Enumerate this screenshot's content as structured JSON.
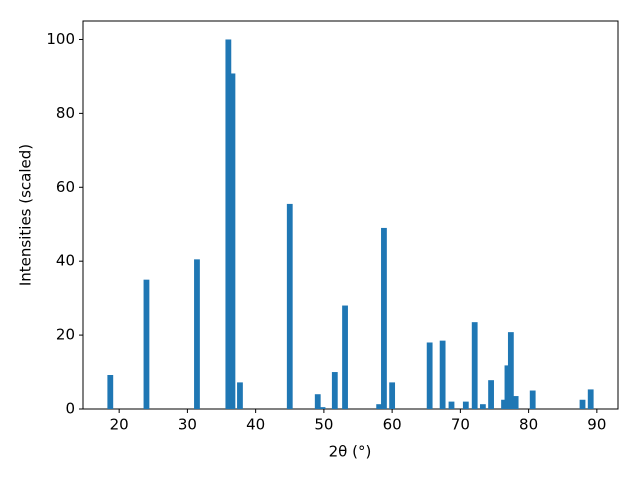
{
  "chart_data": {
    "type": "bar",
    "xlabel": "2θ (°)",
    "ylabel": "Intensities (scaled)",
    "x": [
      18.7,
      24.0,
      31.4,
      36.0,
      36.6,
      37.7,
      45.0,
      49.1,
      49.8,
      51.6,
      53.1,
      58.1,
      58.8,
      60.0,
      65.5,
      67.4,
      68.7,
      70.8,
      72.1,
      73.3,
      74.5,
      76.4,
      76.9,
      77.4,
      78.1,
      80.6,
      87.9,
      89.1
    ],
    "values": [
      9.2,
      35,
      40.5,
      100,
      90.8,
      7.2,
      55.5,
      4,
      0.5,
      10,
      28,
      1.3,
      49,
      7.2,
      18,
      18.5,
      2,
      2,
      23.5,
      1.3,
      7.8,
      2.5,
      11.8,
      20.8,
      3.5,
      5,
      2.5,
      5.3
    ],
    "bar_width": 0.85,
    "color": "#1f77b4",
    "xlim": [
      14.7,
      93.1
    ],
    "xticks": [
      20,
      30,
      40,
      50,
      60,
      70,
      80,
      90
    ],
    "ylim": [
      0,
      105
    ],
    "yticks": [
      0,
      20,
      40,
      60,
      80,
      100
    ],
    "grid": false
  }
}
